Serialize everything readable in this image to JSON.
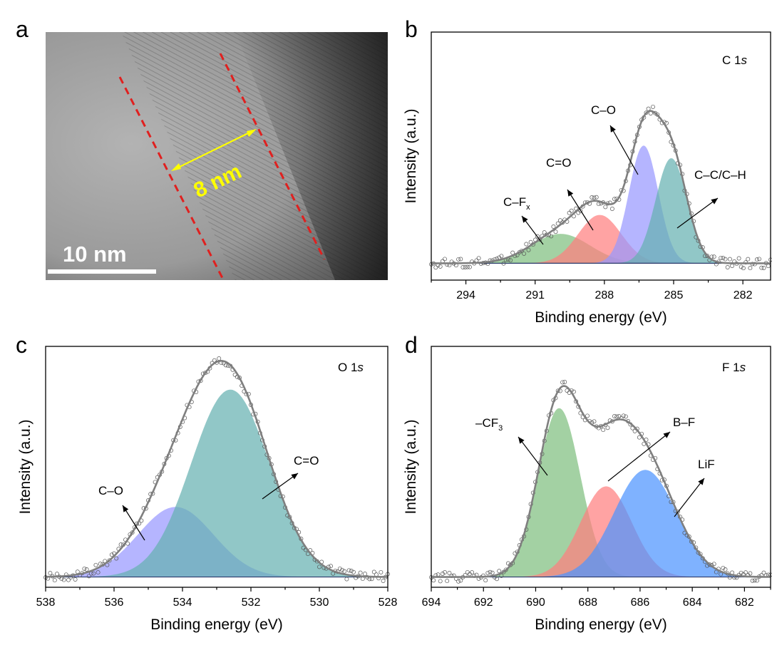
{
  "panels": {
    "a": {
      "letter": "a",
      "scale_bar": "10 nm",
      "thickness": "8 nm"
    },
    "b": {
      "letter": "b",
      "region": "C 1",
      "region_italic": "s"
    },
    "c": {
      "letter": "c",
      "region": "O 1",
      "region_italic": "s"
    },
    "d": {
      "letter": "d",
      "region": "F 1",
      "region_italic": "s"
    }
  },
  "chart_data": [
    {
      "panel": "b",
      "type": "area",
      "xlabel": "Binding energy (eV)",
      "ylabel": "Intensity (a.u.)",
      "xlim": [
        295.5,
        280.8
      ],
      "xticks": [
        294,
        291,
        288,
        285,
        282
      ],
      "ylim": [
        -0.08,
        1.1
      ],
      "x_reversed": true,
      "envelope_color": "#7f7f7f",
      "series": [
        {
          "name": "C–F",
          "name_sub": "x",
          "center": 289.9,
          "height": 0.14,
          "fwhm": 3.0,
          "color": "#7fbf7f"
        },
        {
          "name": "C=O",
          "center": 288.2,
          "height": 0.23,
          "fwhm": 2.2,
          "color": "#ff7f7f"
        },
        {
          "name": "C–O",
          "center": 286.3,
          "height": 0.56,
          "fwhm": 1.5,
          "color": "#9999ff"
        },
        {
          "name": "C–C/C–H",
          "center": 285.1,
          "height": 0.5,
          "fwhm": 1.6,
          "color": "#66b2b2"
        }
      ]
    },
    {
      "panel": "c",
      "type": "area",
      "xlabel": "Binding energy (eV)",
      "ylabel": "Intensity (a.u.)",
      "xlim": [
        538,
        528
      ],
      "xticks": [
        538,
        536,
        534,
        532,
        530,
        528
      ],
      "ylim": [
        -0.05,
        1.12
      ],
      "x_reversed": true,
      "envelope_color": "#7f7f7f",
      "series": [
        {
          "name": "C–O",
          "center": 534.2,
          "height": 0.34,
          "fwhm": 2.6,
          "color": "#9999ff"
        },
        {
          "name": "C=O",
          "center": 532.6,
          "height": 0.91,
          "fwhm": 2.7,
          "color": "#66b2b2"
        }
      ]
    },
    {
      "panel": "d",
      "type": "area",
      "xlabel": "Binding energy (eV)",
      "ylabel": "Intensity (a.u.)",
      "xlim": [
        694,
        681
      ],
      "xticks": [
        694,
        692,
        690,
        688,
        686,
        684,
        682
      ],
      "ylim": [
        -0.05,
        1.12
      ],
      "x_reversed": true,
      "envelope_color": "#7f7f7f",
      "series": [
        {
          "name": "–CF",
          "name_sub": "3",
          "center": 689.1,
          "height": 0.82,
          "fwhm": 1.9,
          "color": "#7fbf7f"
        },
        {
          "name": "B–F",
          "center": 687.3,
          "height": 0.44,
          "fwhm": 2.3,
          "color": "#ff7f7f"
        },
        {
          "name": "LiF",
          "center": 685.8,
          "height": 0.52,
          "fwhm": 2.8,
          "color": "#4d94ff"
        }
      ]
    }
  ]
}
